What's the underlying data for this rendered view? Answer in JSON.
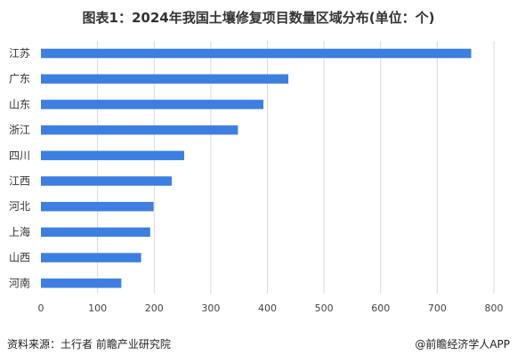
{
  "title": "图表1：2024年我国土壤修复项目数量区域分布(单位：个)",
  "chart_data": {
    "type": "bar",
    "orientation": "horizontal",
    "categories": [
      "江苏",
      "广东",
      "山东",
      "浙江",
      "四川",
      "江西",
      "河北",
      "上海",
      "山西",
      "河南"
    ],
    "values": [
      760,
      437,
      393,
      348,
      253,
      231,
      199,
      193,
      177,
      142
    ],
    "xticks": [
      0,
      100,
      200,
      300,
      400,
      500,
      600,
      700,
      800
    ],
    "xlim": [
      0,
      800
    ],
    "grid": "vertical",
    "bar_color": "#3d7fe0",
    "grid_color": "#d9d9d9"
  },
  "footer": {
    "source": "资料来源：土行者 前瞻产业研究院",
    "brand": "@前瞻经济学人APP"
  }
}
